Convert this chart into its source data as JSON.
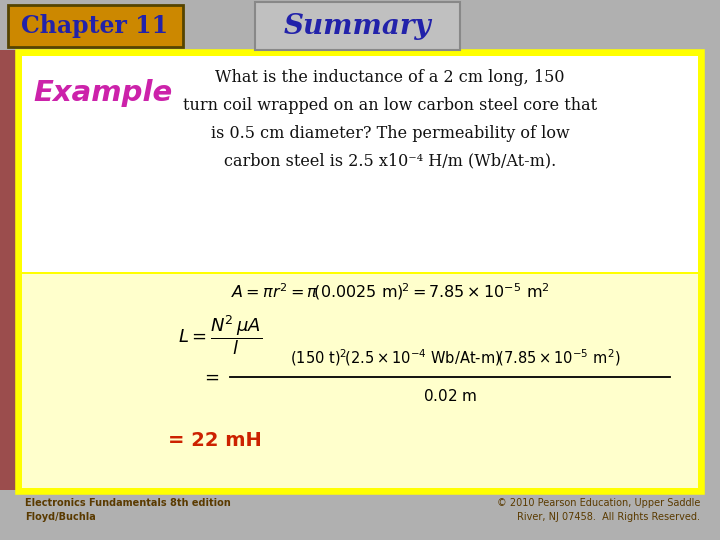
{
  "chapter_title": "Chapter 11",
  "summary_title": "Summary",
  "example_label": "Example",
  "footer_left": "Electronics Fundamentals 8th edition\nFloyd/Buchla",
  "footer_right": "© 2010 Pearson Education, Upper Saddle\nRiver, NJ 07458.  All Rights Reserved.",
  "bg_gray": "#a0a0a0",
  "bg_white_box": "#ffffff",
  "bg_yellow_box": "#ffffcc",
  "chapter_bg": "#cc8800",
  "chapter_text_color": "#2222aa",
  "summary_box_bg": "#c0c0c0",
  "summary_text_color": "#2222aa",
  "example_color": "#cc22aa",
  "answer_color": "#cc2200",
  "footer_color": "#5a3a00",
  "yellow_border": "#ffff00",
  "red_left_color": "#883030"
}
